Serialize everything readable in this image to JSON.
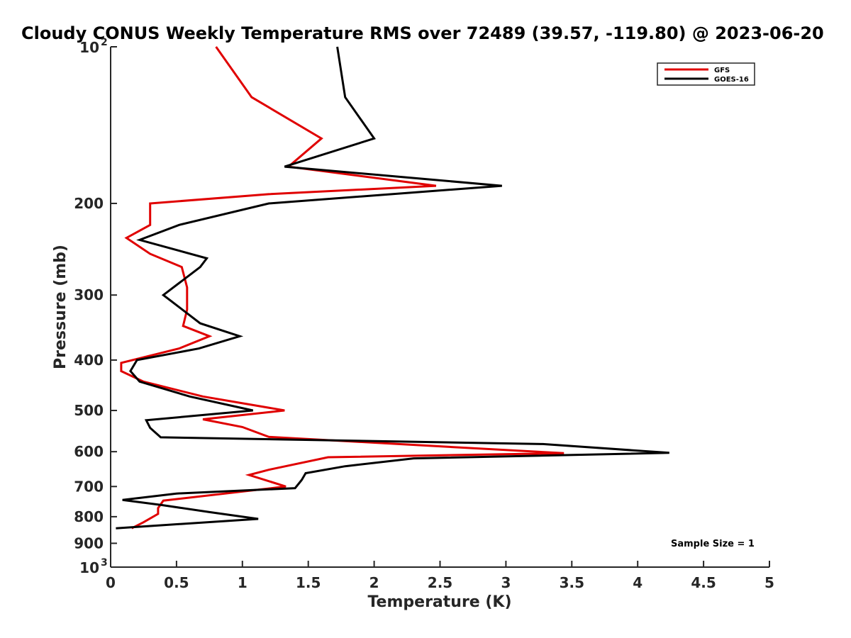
{
  "chart_data": {
    "type": "line",
    "title": "Cloudy CONUS Weekly Temperature RMS over 72489 (39.57, -119.80) @ 2023-06-20",
    "xlabel": "Temperature (K)",
    "ylabel": "Pressure (mb)",
    "xlim": [
      0,
      5
    ],
    "ylim": [
      100,
      1000
    ],
    "y_scale": "log",
    "y_reversed": true,
    "grid": false,
    "legend_position": "top-right",
    "x_ticks": [
      "0",
      "0.5",
      "1",
      "1.5",
      "2",
      "2.5",
      "3",
      "3.5",
      "4",
      "4.5",
      "5"
    ],
    "y_ticks": [
      {
        "base": "10",
        "exp": "2",
        "value": 100
      },
      {
        "base": "200",
        "exp": "",
        "value": 200
      },
      {
        "base": "300",
        "exp": "",
        "value": 300
      },
      {
        "base": "400",
        "exp": "",
        "value": 400
      },
      {
        "base": "500",
        "exp": "",
        "value": 500
      },
      {
        "base": "600",
        "exp": "",
        "value": 600
      },
      {
        "base": "700",
        "exp": "",
        "value": 700
      },
      {
        "base": "800",
        "exp": "",
        "value": 800
      },
      {
        "base": "900",
        "exp": "",
        "value": 900
      },
      {
        "base": "10",
        "exp": "3",
        "value": 1000
      }
    ],
    "annotation": "Sample Size = 1",
    "series": [
      {
        "name": "GFS",
        "color": "#e00000",
        "points": [
          [
            0.8,
            100
          ],
          [
            1.07,
            125
          ],
          [
            1.6,
            150
          ],
          [
            1.35,
            170
          ],
          [
            2.47,
            185
          ],
          [
            1.2,
            192
          ],
          [
            0.3,
            200
          ],
          [
            0.3,
            210
          ],
          [
            0.3,
            220
          ],
          [
            0.12,
            233
          ],
          [
            0.3,
            250
          ],
          [
            0.54,
            265
          ],
          [
            0.58,
            290
          ],
          [
            0.58,
            320
          ],
          [
            0.55,
            344
          ],
          [
            0.75,
            360
          ],
          [
            0.52,
            380
          ],
          [
            0.08,
            405
          ],
          [
            0.08,
            420
          ],
          [
            0.25,
            440
          ],
          [
            0.7,
            470
          ],
          [
            1.32,
            500
          ],
          [
            0.7,
            520
          ],
          [
            1.0,
            538
          ],
          [
            1.2,
            562
          ],
          [
            3.44,
            604
          ],
          [
            1.65,
            615
          ],
          [
            1.2,
            650
          ],
          [
            1.05,
            665
          ],
          [
            1.33,
            700
          ],
          [
            0.4,
            745
          ],
          [
            0.36,
            770
          ],
          [
            0.36,
            790
          ],
          [
            0.25,
            820
          ],
          [
            0.16,
            842
          ]
        ]
      },
      {
        "name": "GOES-16",
        "color": "#000000",
        "points": [
          [
            1.72,
            100
          ],
          [
            1.78,
            125
          ],
          [
            2.0,
            150
          ],
          [
            1.32,
            170
          ],
          [
            2.97,
            185
          ],
          [
            1.2,
            200
          ],
          [
            0.52,
            220
          ],
          [
            0.22,
            235
          ],
          [
            0.73,
            255
          ],
          [
            0.68,
            265
          ],
          [
            0.4,
            300
          ],
          [
            0.68,
            340
          ],
          [
            0.98,
            360
          ],
          [
            0.67,
            380
          ],
          [
            0.2,
            400
          ],
          [
            0.15,
            420
          ],
          [
            0.22,
            440
          ],
          [
            0.6,
            470
          ],
          [
            1.08,
            500
          ],
          [
            0.27,
            522
          ],
          [
            0.3,
            540
          ],
          [
            0.38,
            563
          ],
          [
            3.28,
            580
          ],
          [
            4.24,
            603
          ],
          [
            2.3,
            618
          ],
          [
            1.78,
            640
          ],
          [
            1.48,
            660
          ],
          [
            1.45,
            680
          ],
          [
            1.4,
            705
          ],
          [
            0.5,
            722
          ],
          [
            0.09,
            743
          ],
          [
            0.39,
            760
          ],
          [
            0.75,
            784
          ],
          [
            1.12,
            808
          ],
          [
            0.04,
            842
          ]
        ]
      }
    ]
  }
}
